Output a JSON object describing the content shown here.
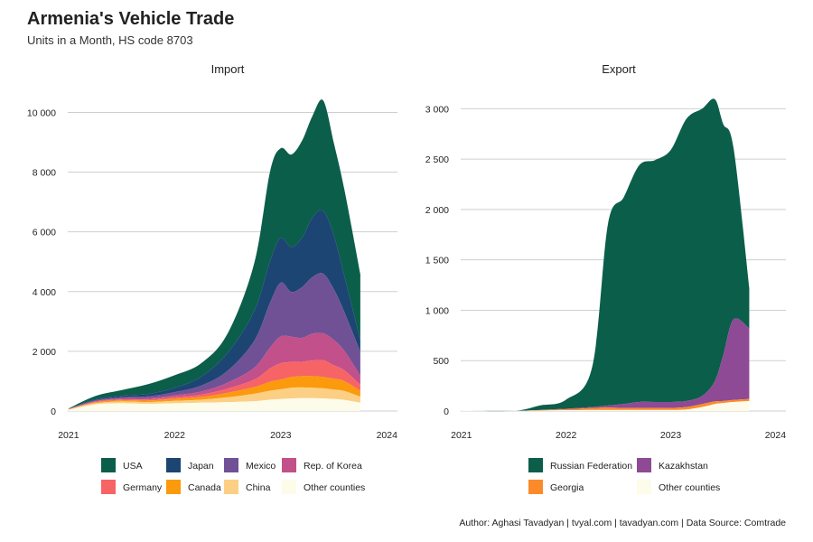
{
  "title": "Armenia's Vehicle Trade",
  "subtitle": "Units in a Month, HS code 8703",
  "caption": "Author: Aghasi Tavadyan   |   tvyal.com   |   tavadyan.com    |   Data Source: Comtrade",
  "colors": {
    "USA": "#0b5e4a",
    "Japan": "#1c4573",
    "Mexico": "#705196",
    "Rep. of Korea": "#c2508a",
    "Germany": "#f76466",
    "Canada": "#fa9a0c",
    "China": "#fccf84",
    "Other counties": "#fdfbe9",
    "Russian Federation": "#0b5e4a",
    "Kazakhstan": "#8e4a94",
    "Georgia": "#fb8b2a"
  },
  "chart_data": [
    {
      "type": "area",
      "stacked": true,
      "title": "Import",
      "x": [
        2021.0,
        2021.25,
        2021.5,
        2021.75,
        2022.0,
        2022.25,
        2022.5,
        2022.75,
        2022.9,
        2023.0,
        2023.1,
        2023.2,
        2023.3,
        2023.4,
        2023.5,
        2023.6,
        2023.75
      ],
      "xlim": [
        2020.95,
        2024.1
      ],
      "ylim": [
        0,
        10800
      ],
      "x_ticks": [
        2021,
        2022,
        2023,
        2024
      ],
      "x_tick_labels": [
        "2021",
        "2022",
        "2023",
        "2024"
      ],
      "y_ticks": [
        0,
        2000,
        4000,
        6000,
        8000,
        10000
      ],
      "y_tick_labels": [
        "0",
        "2 000",
        "4 000",
        "6 000",
        "8 000",
        "10 000"
      ],
      "series": [
        {
          "name": "Other counties",
          "values": [
            40,
            220,
            260,
            240,
            260,
            280,
            300,
            330,
            380,
            400,
            420,
            430,
            430,
            420,
            400,
            370,
            280
          ]
        },
        {
          "name": "China",
          "values": [
            10,
            40,
            60,
            60,
            80,
            100,
            160,
            250,
            300,
            330,
            360,
            360,
            350,
            340,
            320,
            300,
            200
          ]
        },
        {
          "name": "Canada",
          "values": [
            5,
            30,
            40,
            50,
            70,
            90,
            150,
            220,
            300,
            320,
            360,
            380,
            390,
            380,
            360,
            330,
            200
          ]
        },
        {
          "name": "Germany",
          "values": [
            5,
            20,
            30,
            40,
            60,
            80,
            140,
            250,
            450,
            550,
            500,
            480,
            520,
            560,
            450,
            360,
            200
          ]
        },
        {
          "name": "Rep. of Korea",
          "values": [
            5,
            20,
            30,
            40,
            60,
            100,
            200,
            400,
            700,
            900,
            850,
            800,
            900,
            900,
            850,
            650,
            300
          ]
        },
        {
          "name": "Mexico",
          "values": [
            5,
            30,
            40,
            60,
            100,
            200,
            400,
            900,
            1500,
            1800,
            1500,
            1700,
            1900,
            2000,
            1700,
            1300,
            800
          ]
        },
        {
          "name": "Japan",
          "values": [
            5,
            30,
            50,
            80,
            150,
            300,
            600,
            1000,
            1400,
            1500,
            1500,
            1650,
            2000,
            2100,
            1800,
            1200,
            400
          ]
        },
        {
          "name": "USA",
          "values": [
            10,
            110,
            190,
            330,
            420,
            450,
            650,
            1600,
            3000,
            3000,
            3100,
            3250,
            3400,
            3700,
            3100,
            2900,
            2200
          ]
        }
      ],
      "legend": {
        "position": "bottom",
        "entries": [
          "USA",
          "Japan",
          "Mexico",
          "Rep. of Korea",
          "Germany",
          "Canada",
          "China",
          "Other counties"
        ]
      },
      "grid": true
    },
    {
      "type": "area",
      "stacked": true,
      "title": "Export",
      "x": [
        2021.0,
        2021.5,
        2021.75,
        2022.0,
        2022.25,
        2022.4,
        2022.55,
        2022.7,
        2022.85,
        2023.0,
        2023.15,
        2023.3,
        2023.42,
        2023.5,
        2023.6,
        2023.75
      ],
      "xlim": [
        2020.95,
        2024.1
      ],
      "ylim": [
        0,
        3200
      ],
      "x_ticks": [
        2021,
        2022,
        2023,
        2024
      ],
      "x_tick_labels": [
        "2021",
        "2022",
        "2023",
        "2024"
      ],
      "y_ticks": [
        0,
        500,
        1000,
        1500,
        2000,
        2500,
        3000
      ],
      "y_tick_labels": [
        "0",
        "500",
        "1 000",
        "1 500",
        "2 000",
        "2 500",
        "3 000"
      ],
      "series": [
        {
          "name": "Other counties",
          "values": [
            5,
            2,
            5,
            8,
            10,
            10,
            10,
            10,
            10,
            10,
            15,
            40,
            70,
            80,
            90,
            100
          ]
        },
        {
          "name": "Georgia",
          "values": [
            0,
            0,
            5,
            10,
            20,
            25,
            20,
            20,
            20,
            20,
            25,
            30,
            25,
            20,
            20,
            20
          ]
        },
        {
          "name": "Kazakhstan",
          "values": [
            0,
            0,
            0,
            5,
            10,
            20,
            40,
            60,
            60,
            60,
            60,
            80,
            200,
            450,
            800,
            700
          ]
        },
        {
          "name": "Russian Federation",
          "values": [
            0,
            0,
            45,
            90,
            400,
            1800,
            2050,
            2350,
            2400,
            2500,
            2800,
            2850,
            2800,
            2300,
            1700,
            400
          ]
        }
      ],
      "legend": {
        "position": "bottom",
        "entries": [
          "Russian Federation",
          "Kazakhstan",
          "Georgia",
          "Other counties"
        ]
      },
      "grid": true
    }
  ]
}
